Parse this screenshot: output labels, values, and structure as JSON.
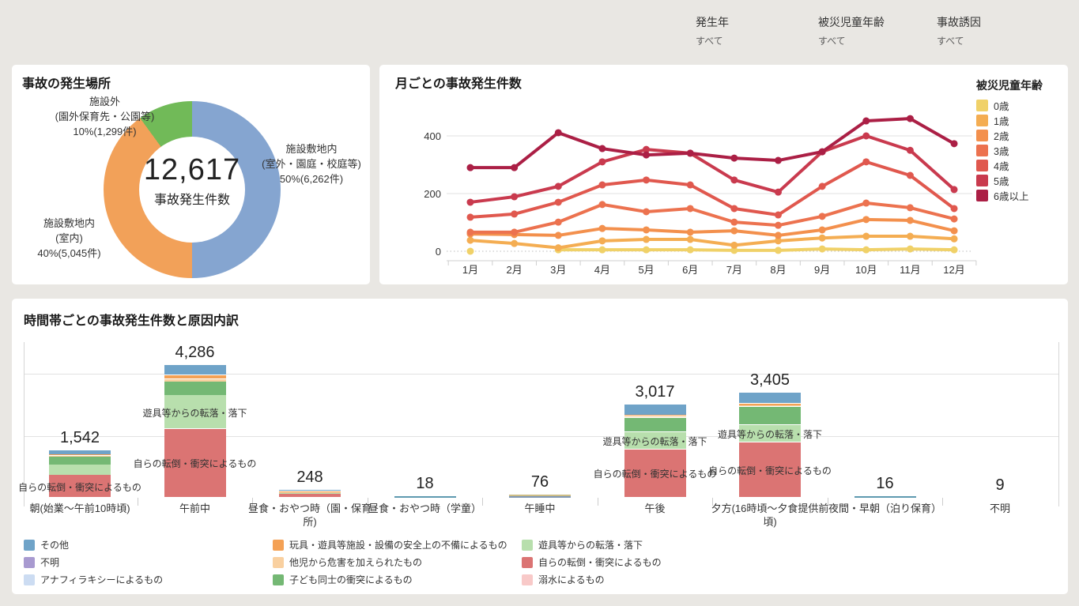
{
  "filters": [
    {
      "label": "発生年",
      "value": "すべて"
    },
    {
      "label": "被災児童年齢",
      "value": "すべて"
    },
    {
      "label": "事故誘因",
      "value": "すべて"
    }
  ],
  "donut": {
    "title": "事故の発生場所",
    "center_value": "12,617",
    "center_label": "事故発生件数",
    "chart_data": {
      "type": "pie",
      "slices": [
        {
          "name": "施設敷地内(室外・園庭・校庭等)",
          "lines": [
            "施設敷地内",
            "(室外・園庭・校庭等)",
            "50%(6,262件)"
          ],
          "pct": 50,
          "value": 6262,
          "color": "#85a5d0"
        },
        {
          "name": "施設敷地内(室内)",
          "lines": [
            "施設敷地内",
            "(室内)",
            "40%(5,045件)"
          ],
          "pct": 40,
          "value": 5045,
          "color": "#f2a159"
        },
        {
          "name": "施設外(園外保育先・公園等)",
          "lines": [
            "施設外",
            "(園外保育先・公園等)",
            "10%(1,299件)"
          ],
          "pct": 10,
          "value": 1299,
          "color": "#71ba58"
        }
      ],
      "total": 12617
    }
  },
  "line_chart": {
    "title": "月ごとの事故発生件数",
    "legend_title": "被災児童年齢",
    "chart_data": {
      "type": "line",
      "x": [
        "1月",
        "2月",
        "3月",
        "4月",
        "5月",
        "6月",
        "7月",
        "8月",
        "9月",
        "10月",
        "11月",
        "12月"
      ],
      "yticks": [
        0,
        200,
        400
      ],
      "ylim": [
        0,
        480
      ],
      "series": [
        {
          "name": "0歳",
          "color": "#f0d168",
          "values": [
            0,
            null,
            5,
            5,
            5,
            5,
            3,
            3,
            8,
            5,
            8,
            5
          ]
        },
        {
          "name": "1歳",
          "color": "#f4ad52",
          "values": [
            38,
            27,
            12,
            36,
            41,
            41,
            21,
            36,
            46,
            52,
            52,
            43
          ]
        },
        {
          "name": "2歳",
          "color": "#f3904d",
          "values": [
            60,
            58,
            55,
            79,
            74,
            66,
            71,
            55,
            74,
            110,
            107,
            71
          ]
        },
        {
          "name": "3歳",
          "color": "#ec724f",
          "values": [
            66,
            66,
            101,
            162,
            137,
            148,
            101,
            90,
            121,
            167,
            151,
            112
          ]
        },
        {
          "name": "4歳",
          "color": "#e0584e",
          "values": [
            118,
            129,
            170,
            230,
            247,
            230,
            148,
            126,
            225,
            310,
            263,
            148
          ]
        },
        {
          "name": "5歳",
          "color": "#c93a4e",
          "values": [
            170,
            189,
            225,
            310,
            353,
            340,
            247,
            205,
            345,
            400,
            350,
            214
          ]
        },
        {
          "name": "6歳以上",
          "color": "#ab1f45",
          "values": [
            290,
            290,
            411,
            356,
            334,
            340,
            323,
            315,
            345,
            452,
            460,
            373
          ]
        }
      ]
    }
  },
  "bar_chart": {
    "title": "時間帯ごとの事故発生件数と原因内訳",
    "segment_colors": {
      "sonota": "#6fa3c8",
      "fumei": "#a89ad0",
      "anaphylaxis": "#ccdcf2",
      "gangu": "#f4a155",
      "tagai": "#f9d0a0",
      "kodomo": "#74b874",
      "yugu": "#b8dfad",
      "jibun": "#db7473",
      "dekisui": "#f8c9c8"
    },
    "inner_label_texts": {
      "yugu": "遊具等からの転落・落下",
      "jibun": "自らの転倒・衝突によるもの"
    },
    "chart_data": {
      "type": "bar",
      "stacked": true,
      "gridlines": [
        2000,
        4000
      ],
      "categories": [
        {
          "label": "朝(始業〜午前10時頃)",
          "total": 1542,
          "total_label": "1,542",
          "segments": [
            [
              "jibun",
              728
            ],
            [
              "yugu",
              340
            ],
            [
              "kodomo",
              255
            ],
            [
              "tagai",
              30
            ],
            [
              "gangu",
              42
            ],
            [
              "sonota",
              147
            ]
          ],
          "inner_labels": [
            "jibun"
          ]
        },
        {
          "label": "午前中",
          "total": 4286,
          "total_label": "4,286",
          "segments": [
            [
              "jibun",
              2220
            ],
            [
              "yugu",
              1090
            ],
            [
              "kodomo",
              430
            ],
            [
              "tagai",
              95
            ],
            [
              "gangu",
              120
            ],
            [
              "sonota",
              331
            ]
          ],
          "inner_labels": [
            "yugu",
            "jibun"
          ]
        },
        {
          "label": "昼食・おやつ時（園・保育所)",
          "total": 248,
          "total_label": "248",
          "segments": [
            [
              "jibun",
              120
            ],
            [
              "yugu",
              35
            ],
            [
              "kodomo",
              25
            ],
            [
              "tagai",
              10
            ],
            [
              "gangu",
              18
            ],
            [
              "sonota",
              40
            ]
          ],
          "inner_labels": []
        },
        {
          "label": "昼食・おやつ時（学童）",
          "total": 18,
          "total_label": "18",
          "mini_colors": [
            "#5e9ab0"
          ],
          "inner_labels": []
        },
        {
          "label": "午睡中",
          "total": 76,
          "total_label": "76",
          "mini_colors": [
            "#cdbd85",
            "#7f97b4"
          ],
          "inner_labels": []
        },
        {
          "label": "午後",
          "total": 3017,
          "total_label": "3,017",
          "segments": [
            [
              "jibun",
              1560
            ],
            [
              "yugu",
              560
            ],
            [
              "kodomo",
              460
            ],
            [
              "tagai",
              50
            ],
            [
              "gangu",
              45
            ],
            [
              "sonota",
              342
            ]
          ],
          "inner_labels": [
            "yugu",
            "jibun"
          ]
        },
        {
          "label": "夕方(16時頃〜夕食提供前頃)",
          "total": 3405,
          "total_label": "3,405",
          "segments": [
            [
              "jibun",
              1790
            ],
            [
              "yugu",
              565
            ],
            [
              "kodomo",
              580
            ],
            [
              "tagai",
              48
            ],
            [
              "gangu",
              62
            ],
            [
              "sonota",
              360
            ]
          ],
          "inner_labels": [
            "yugu",
            "jibun"
          ]
        },
        {
          "label": "夜間・早朝（泊り保育）",
          "total": 16,
          "total_label": "16",
          "mini_colors": [
            "#5e9ab0"
          ],
          "inner_labels": []
        },
        {
          "label": "不明",
          "total": 9,
          "total_label": "9",
          "inner_labels": []
        }
      ]
    },
    "legend": [
      {
        "key": "sonota",
        "label": "その他"
      },
      {
        "key": "fumei",
        "label": "不明"
      },
      {
        "key": "anaphylaxis",
        "label": "アナフィラキシーによるもの"
      },
      {
        "key": "gangu",
        "label": "玩具・遊具等施設・設備の安全上の不備によるもの"
      },
      {
        "key": "tagai",
        "label": "他児から危害を加えられたもの"
      },
      {
        "key": "kodomo",
        "label": "子ども同士の衝突によるもの"
      },
      {
        "key": "yugu",
        "label": "遊具等からの転落・落下"
      },
      {
        "key": "jibun",
        "label": "自らの転倒・衝突によるもの"
      },
      {
        "key": "dekisui",
        "label": "溺水によるもの"
      }
    ]
  }
}
